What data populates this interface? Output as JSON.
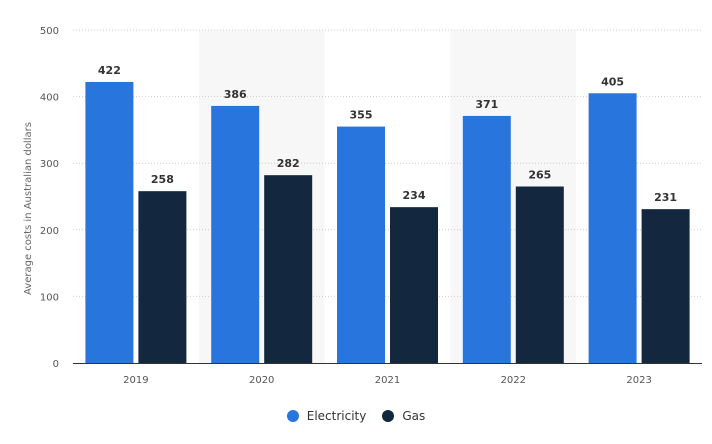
{
  "chart_data": {
    "type": "bar",
    "categories": [
      "2019",
      "2020",
      "2021",
      "2022",
      "2023"
    ],
    "series": [
      {
        "name": "Electricity",
        "values": [
          422,
          386,
          355,
          371,
          405
        ],
        "color": "#2876dd"
      },
      {
        "name": "Gas",
        "values": [
          258,
          282,
          234,
          265,
          231
        ],
        "color": "#13273f"
      }
    ],
    "ylabel": "Average costs in Australian dollars",
    "ylim": [
      0,
      500
    ],
    "yticks": [
      0,
      100,
      200,
      300,
      400,
      500
    ],
    "grid": true,
    "legend_position": "bottom-center",
    "data_labels": true
  }
}
